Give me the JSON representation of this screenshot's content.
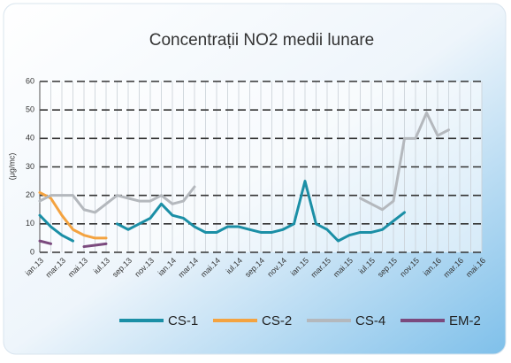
{
  "chart_data": {
    "type": "line",
    "title": "Concentrații NO2 medii lunare",
    "y_label": "(μg/mc)",
    "categories": [
      "ian.13",
      null,
      "mar.13",
      null,
      "mai.13",
      null,
      "iul.13",
      null,
      "sep.13",
      null,
      "nov.13",
      null,
      "ian.14",
      null,
      "mar.14",
      null,
      "mai.14",
      null,
      "iul.14",
      null,
      "sep.14",
      null,
      "nov.14",
      null,
      "ian.15",
      null,
      "mar.15",
      null,
      "mai.15",
      null,
      "iul.15",
      null,
      "sep.15",
      null,
      "nov.15",
      null,
      "ian.16",
      null,
      "mar.16",
      null,
      "mai.16"
    ],
    "series": [
      {
        "name": "CS-1",
        "color": "#1b8fa6",
        "values": [
          13,
          9,
          6,
          4,
          null,
          null,
          null,
          10,
          8,
          10,
          12,
          17,
          13,
          12,
          9,
          7,
          7,
          9,
          9,
          8,
          7,
          7,
          8,
          10,
          25,
          10,
          8,
          4,
          6,
          7,
          7,
          8,
          11,
          14,
          null,
          null,
          null,
          null,
          null,
          null,
          null
        ]
      },
      {
        "name": "CS-2",
        "color": "#f4a340",
        "values": [
          21,
          19,
          13,
          8,
          6,
          5,
          5,
          null,
          null,
          null,
          null,
          null,
          null,
          null,
          null,
          null,
          null,
          null,
          null,
          null,
          null,
          null,
          null,
          null,
          null,
          null,
          null,
          null,
          null,
          null,
          null,
          null,
          null,
          null,
          null,
          null,
          null,
          null,
          null,
          null,
          null
        ]
      },
      {
        "name": "CS-4",
        "color": "#b4b8bd",
        "values": [
          18,
          20,
          20,
          20,
          15,
          14,
          17,
          20,
          19,
          18,
          18,
          20,
          17,
          18,
          23,
          null,
          null,
          null,
          null,
          null,
          null,
          null,
          null,
          null,
          null,
          null,
          null,
          null,
          null,
          19,
          17,
          15,
          18,
          40,
          40,
          49,
          41,
          43,
          null,
          null,
          null
        ]
      },
      {
        "name": "EM-2",
        "color": "#7b4a7e",
        "values": [
          4,
          3,
          null,
          null,
          2,
          2.5,
          3,
          null,
          null,
          null,
          null,
          null,
          null,
          null,
          null,
          null,
          null,
          null,
          null,
          null,
          null,
          null,
          null,
          null,
          null,
          null,
          null,
          null,
          null,
          null,
          null,
          null,
          null,
          null,
          null,
          null,
          null,
          null,
          null,
          null,
          null
        ]
      }
    ],
    "ylim": [
      0,
      60
    ],
    "yticks": [
      0,
      10,
      20,
      30,
      40,
      50,
      60
    ],
    "grid": true
  }
}
